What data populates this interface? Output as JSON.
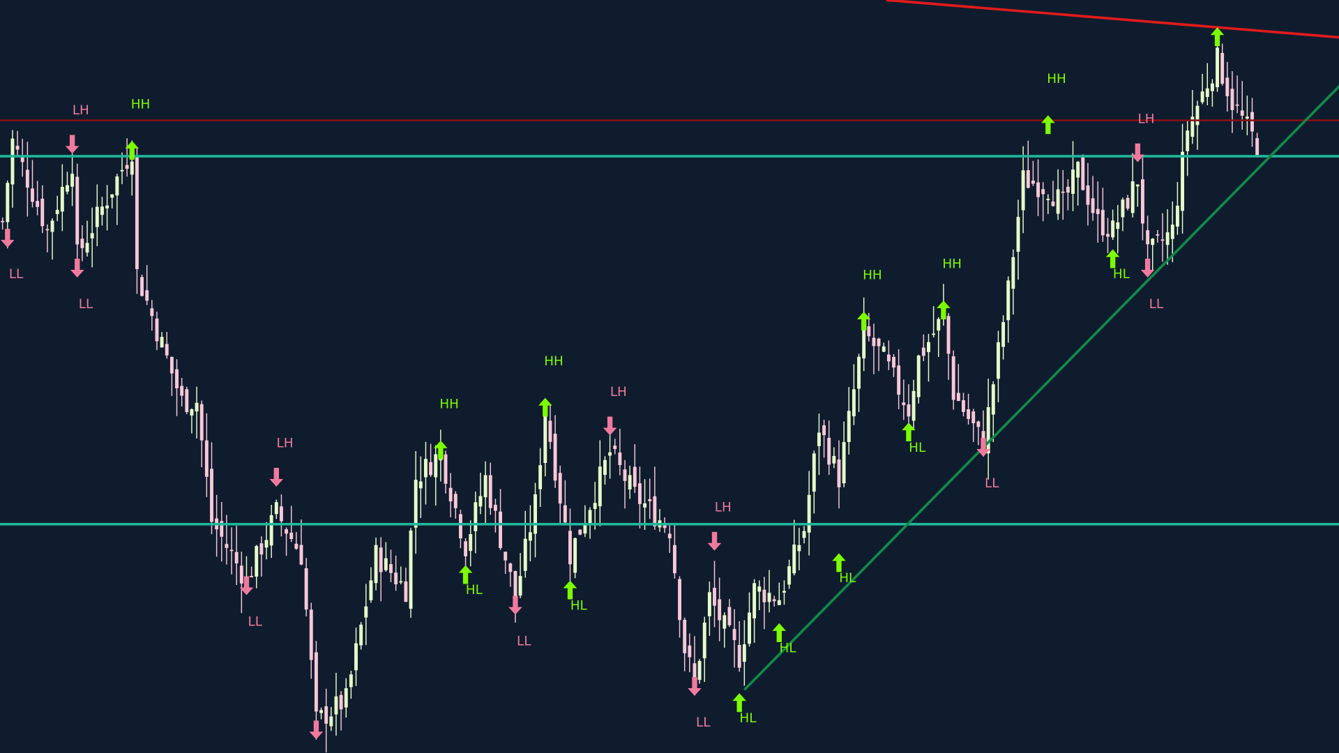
{
  "colors": {
    "background": "#0f1c2e",
    "bull": "#e6fcc8",
    "bear": "#f8c8d8",
    "up_marker": "#7cfc00",
    "down_marker": "#f07a9e",
    "support_resistance": "#1fb89a",
    "resistance_dark": "#8b0f14",
    "down_trendline": "#e01b1b",
    "up_trendline": "#12894a"
  },
  "chart_data": {
    "type": "candlestick",
    "title": "",
    "xlabel": "",
    "ylabel": "",
    "bar_count": 253,
    "ylim": [
      100,
      188.2
    ],
    "grid": false,
    "legend": "none",
    "price_path": [
      [
        0,
        162.2
      ],
      [
        2,
        171.7
      ],
      [
        5,
        167.2
      ],
      [
        9,
        161.2
      ],
      [
        14,
        169.2
      ],
      [
        15,
        158.2
      ],
      [
        19,
        162.7
      ],
      [
        26,
        170.7
      ],
      [
        27,
        156.2
      ],
      [
        33,
        146.2
      ],
      [
        36,
        141.2
      ],
      [
        39,
        141.2
      ],
      [
        42,
        127.2
      ],
      [
        49,
        120.2
      ],
      [
        55,
        128.2
      ],
      [
        60,
        123.2
      ],
      [
        63,
        103.7
      ],
      [
        69,
        106.2
      ],
      [
        75,
        123.2
      ],
      [
        81,
        119.2
      ],
      [
        83,
        132.2
      ],
      [
        88,
        135.2
      ],
      [
        93,
        124.2
      ],
      [
        97,
        132.2
      ],
      [
        103,
        118.2
      ],
      [
        107,
        129.2
      ],
      [
        109,
        140.2
      ],
      [
        114,
        123.2
      ],
      [
        122,
        135.2
      ],
      [
        127,
        130.2
      ],
      [
        134,
        126.2
      ],
      [
        137,
        112.2
      ],
      [
        139,
        108.2
      ],
      [
        142,
        118.2
      ],
      [
        148,
        111.2
      ],
      [
        151,
        119.2
      ],
      [
        156,
        118.2
      ],
      [
        161,
        126.2
      ],
      [
        164,
        138.2
      ],
      [
        168,
        132.2
      ],
      [
        173,
        149.2
      ],
      [
        177,
        146.2
      ],
      [
        182,
        140.2
      ],
      [
        184,
        146.2
      ],
      [
        189,
        151.2
      ],
      [
        191,
        142.2
      ],
      [
        197,
        136.2
      ],
      [
        202,
        154.2
      ],
      [
        205,
        167.2
      ],
      [
        210,
        166.2
      ],
      [
        213,
        164.2
      ],
      [
        216,
        168.2
      ],
      [
        220,
        162.2
      ],
      [
        223,
        161.2
      ],
      [
        228,
        167.2
      ],
      [
        230,
        158.2
      ],
      [
        235,
        161.2
      ],
      [
        238,
        173.2
      ],
      [
        244,
        181.2
      ],
      [
        247,
        176.2
      ],
      [
        252,
        171.2
      ]
    ],
    "swing_markers": [
      {
        "label": "LL",
        "dir": "down",
        "bar": 1,
        "price": 159.2
      },
      {
        "label": "LH",
        "dir": "down",
        "bar": 14,
        "price": 170.2
      },
      {
        "label": "LL",
        "dir": "down",
        "bar": 15,
        "price": 155.7
      },
      {
        "label": "HH",
        "dir": "up",
        "bar": 26,
        "price": 171.7
      },
      {
        "label": "LL",
        "dir": "down",
        "bar": 49,
        "price": 118.5
      },
      {
        "label": "LH",
        "dir": "down",
        "bar": 55,
        "price": 131.2
      },
      {
        "label": "",
        "dir": "down",
        "bar": 63,
        "price": 101.6
      },
      {
        "label": "HH",
        "dir": "up",
        "bar": 88,
        "price": 136.6
      },
      {
        "label": "HL",
        "dir": "up",
        "bar": 93,
        "price": 122.0
      },
      {
        "label": "LL",
        "dir": "down",
        "bar": 103,
        "price": 116.2
      },
      {
        "label": "HH",
        "dir": "up",
        "bar": 109,
        "price": 141.6
      },
      {
        "label": "HL",
        "dir": "up",
        "bar": 114,
        "price": 120.2
      },
      {
        "label": "LH",
        "dir": "down",
        "bar": 122,
        "price": 137.2
      },
      {
        "label": "LL",
        "dir": "down",
        "bar": 139,
        "price": 106.7
      },
      {
        "label": "LH",
        "dir": "down",
        "bar": 143,
        "price": 123.7
      },
      {
        "label": "HL",
        "dir": "up",
        "bar": 148,
        "price": 107.0
      },
      {
        "label": "HL",
        "dir": "up",
        "bar": 156,
        "price": 115.2
      },
      {
        "label": "HL",
        "dir": "up",
        "bar": 168,
        "price": 123.4
      },
      {
        "label": "HH",
        "dir": "up",
        "bar": 173,
        "price": 151.7
      },
      {
        "label": "HL",
        "dir": "up",
        "bar": 182,
        "price": 138.7
      },
      {
        "label": "HH",
        "dir": "up",
        "bar": 189,
        "price": 153.0
      },
      {
        "label": "LL",
        "dir": "down",
        "bar": 197,
        "price": 134.7
      },
      {
        "label": "HH",
        "dir": "up",
        "bar": 210,
        "price": 174.7
      },
      {
        "label": "HL",
        "dir": "up",
        "bar": 223,
        "price": 159.0
      },
      {
        "label": "LH",
        "dir": "down",
        "bar": 228,
        "price": 169.2
      },
      {
        "label": "LL",
        "dir": "down",
        "bar": 230,
        "price": 155.7
      },
      {
        "label": "",
        "dir": "up",
        "bar": 244,
        "price": 185.0
      }
    ],
    "horizontal_levels": [
      {
        "price": 174.1,
        "color_key": "resistance_dark"
      },
      {
        "price": 169.9,
        "color_key": "support_resistance"
      },
      {
        "price": 126.8,
        "color_key": "support_resistance"
      }
    ],
    "trendlines": [
      {
        "from": [
          177.5,
          188.2
        ],
        "to": [
          269,
          183.8
        ],
        "color_key": "down_trendline"
      },
      {
        "from": [
          149,
          107.4
        ],
        "to": [
          269,
          178.4
        ],
        "color_key": "up_trendline"
      }
    ]
  }
}
